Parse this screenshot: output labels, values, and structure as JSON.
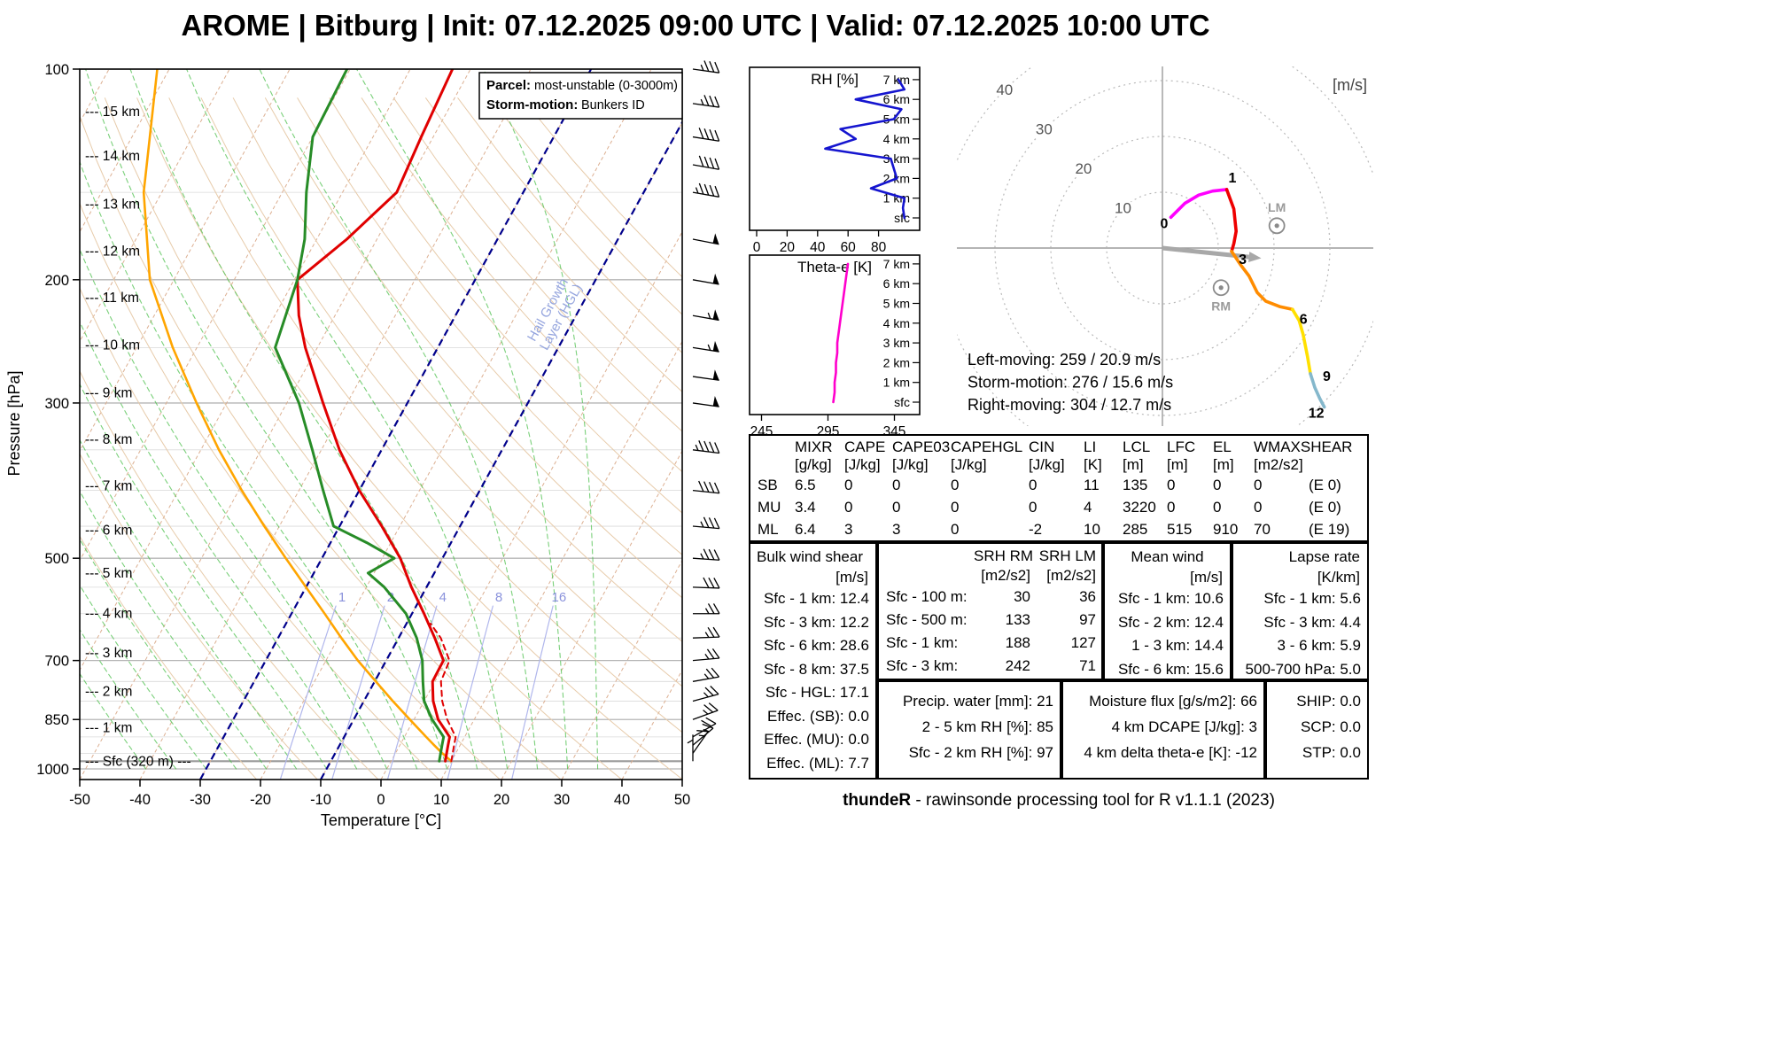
{
  "title": "AROME | Bitburg | Init: 07.12.2025 09:00 UTC | Valid: 07.12.2025 10:00 UTC",
  "footer": {
    "bold": "thundeR",
    "text": " - rawinsonde processing tool for R v1.1.1 (2023)"
  },
  "skewt": {
    "xlabel": "Temperature [°C]",
    "ylabel": "Pressure [hPa]",
    "x_ticks": [
      -50,
      -40,
      -30,
      -20,
      -10,
      0,
      10,
      20,
      30,
      40,
      50
    ],
    "p_ticks": [
      100,
      200,
      300,
      500,
      700,
      850,
      1000
    ],
    "p_gridlines": [
      100,
      150,
      200,
      250,
      300,
      350,
      400,
      450,
      500,
      550,
      600,
      650,
      700,
      750,
      800,
      850,
      900,
      950,
      1000
    ],
    "km_labels": [
      [
        "15 km",
        115
      ],
      [
        "14 km",
        133
      ],
      [
        "13 km",
        156
      ],
      [
        "12 km",
        182
      ],
      [
        "11 km",
        212
      ],
      [
        "10 km",
        248
      ],
      [
        "9 km",
        290
      ],
      [
        "8 km",
        338
      ],
      [
        "7 km",
        394
      ],
      [
        "6 km",
        456
      ],
      [
        "5 km",
        525
      ],
      [
        "4 km",
        600
      ],
      [
        "3 km",
        683
      ],
      [
        "2 km",
        775
      ],
      [
        "1 km",
        873
      ]
    ],
    "sfc_label": "Sfc (320 m)",
    "sfc_p": 975,
    "legend": {
      "parcel_label": "Parcel:",
      "parcel_value": "most-unstable (0-3000m)",
      "storm_label": "Storm-motion:",
      "storm_value": "Bunkers ID"
    },
    "hgl_label_line1": "Hail Growth",
    "hgl_label_line2": "Layer (HGL)",
    "mixing_ratio_values": [
      1,
      2,
      4,
      8,
      16
    ],
    "colors": {
      "temperature": "#e00000",
      "dewpoint": "#278c27",
      "parcel": "#ffa500",
      "hgl": "#00008b",
      "mixing": "#b0b6ec",
      "isotherm": "#dcaf91",
      "dry_adiabat": "#e7cbaa",
      "moist_adiabat": "#4ec04e"
    }
  },
  "chart_data": [
    {
      "type": "line",
      "name": "skewt_temperature",
      "x": "temperature_C",
      "y": "pressure_hPa",
      "points": [
        [
          975,
          9
        ],
        [
          950,
          8.5
        ],
        [
          925,
          8
        ],
        [
          900,
          7.5
        ],
        [
          850,
          4
        ],
        [
          800,
          1.5
        ],
        [
          750,
          -0.4
        ],
        [
          700,
          -0.5
        ],
        [
          650,
          -4
        ],
        [
          600,
          -8
        ],
        [
          550,
          -12.5
        ],
        [
          500,
          -17
        ],
        [
          450,
          -23
        ],
        [
          400,
          -30
        ],
        [
          350,
          -37
        ],
        [
          300,
          -44
        ],
        [
          250,
          -52
        ],
        [
          225,
          -56
        ],
        [
          200,
          -59.5
        ],
        [
          175,
          -55
        ],
        [
          150,
          -51
        ],
        [
          125,
          -52
        ],
        [
          100,
          -53
        ]
      ]
    },
    {
      "type": "line",
      "name": "skewt_dewpoint",
      "x": "dewpoint_C",
      "y": "pressure_hPa",
      "points": [
        [
          975,
          8
        ],
        [
          950,
          7.5
        ],
        [
          925,
          7
        ],
        [
          900,
          6.5
        ],
        [
          850,
          3
        ],
        [
          800,
          0
        ],
        [
          750,
          -2
        ],
        [
          700,
          -4
        ],
        [
          650,
          -7
        ],
        [
          600,
          -11
        ],
        [
          550,
          -17
        ],
        [
          525,
          -21
        ],
        [
          500,
          -18
        ],
        [
          475,
          -24
        ],
        [
          450,
          -31
        ],
        [
          400,
          -36
        ],
        [
          350,
          -41.5
        ],
        [
          300,
          -48
        ],
        [
          250,
          -57
        ],
        [
          200,
          -59.5
        ],
        [
          175,
          -62
        ],
        [
          150,
          -66
        ],
        [
          125,
          -70
        ],
        [
          100,
          -70.5
        ]
      ]
    },
    {
      "type": "line",
      "name": "skewt_parcel_most_unstable",
      "x": "temperature_C",
      "y": "pressure_hPa",
      "points": [
        [
          975,
          10
        ],
        [
          950,
          7.8
        ],
        [
          925,
          5.7
        ],
        [
          900,
          3.6
        ],
        [
          850,
          -0.7
        ],
        [
          800,
          -5.2
        ],
        [
          750,
          -9.8
        ],
        [
          700,
          -14.7
        ],
        [
          650,
          -19.5
        ],
        [
          600,
          -24.5
        ],
        [
          550,
          -30
        ],
        [
          500,
          -36
        ],
        [
          450,
          -42.5
        ],
        [
          400,
          -49.5
        ],
        [
          350,
          -57
        ],
        [
          300,
          -65
        ],
        [
          250,
          -74
        ],
        [
          200,
          -84
        ],
        [
          150,
          -93
        ],
        [
          100,
          -102
        ]
      ]
    },
    {
      "type": "line",
      "name": "skewt_virtual_temperature_dashed",
      "x": "temperature_C",
      "y": "pressure_hPa",
      "points": [
        [
          975,
          10
        ],
        [
          950,
          9.5
        ],
        [
          925,
          9
        ],
        [
          900,
          8.5
        ],
        [
          850,
          5.5
        ],
        [
          800,
          3
        ],
        [
          750,
          1
        ],
        [
          700,
          0.5
        ],
        [
          650,
          -3
        ],
        [
          620,
          -6
        ]
      ]
    },
    {
      "type": "barbs",
      "name": "wind_profile",
      "units": "m/s",
      "levels": [
        [
          975,
          4,
          180
        ],
        [
          950,
          7,
          215
        ],
        [
          925,
          9,
          230
        ],
        [
          900,
          10,
          240
        ],
        [
          850,
          12,
          250
        ],
        [
          800,
          12,
          255
        ],
        [
          750,
          13,
          260
        ],
        [
          700,
          12,
          265
        ],
        [
          650,
          13,
          268
        ],
        [
          600,
          14,
          270
        ],
        [
          550,
          16,
          272
        ],
        [
          500,
          17,
          274
        ],
        [
          450,
          19,
          275
        ],
        [
          400,
          21,
          276
        ],
        [
          350,
          23,
          277
        ],
        [
          300,
          25,
          278
        ],
        [
          275,
          26,
          278
        ],
        [
          250,
          27,
          279
        ],
        [
          225,
          27,
          280
        ],
        [
          200,
          26,
          280
        ],
        [
          175,
          25,
          281
        ],
        [
          150,
          22,
          280
        ],
        [
          137,
          21,
          280
        ],
        [
          125,
          20,
          279
        ],
        [
          112,
          19,
          278
        ],
        [
          100,
          18,
          278
        ]
      ]
    },
    {
      "type": "line",
      "name": "rh_profile",
      "x": "RH_percent",
      "y": "height_km",
      "points": [
        [
          0,
          97
        ],
        [
          0.5,
          96
        ],
        [
          1,
          97
        ],
        [
          1.5,
          75
        ],
        [
          2,
          92
        ],
        [
          2.5,
          90
        ],
        [
          3,
          88
        ],
        [
          3.5,
          45
        ],
        [
          4,
          65
        ],
        [
          4.5,
          55
        ],
        [
          5,
          90
        ],
        [
          5.5,
          95
        ],
        [
          6,
          65
        ],
        [
          6.5,
          97
        ],
        [
          7,
          93
        ]
      ]
    },
    {
      "type": "line",
      "name": "theta_e_profile",
      "x": "theta_e_K",
      "y": "height_km",
      "points": [
        [
          0,
          299
        ],
        [
          0.5,
          300
        ],
        [
          1,
          300
        ],
        [
          1.5,
          301
        ],
        [
          2,
          301
        ],
        [
          2.5,
          302
        ],
        [
          3,
          302
        ],
        [
          3.5,
          303
        ],
        [
          4,
          304
        ],
        [
          4.5,
          305
        ],
        [
          5,
          306
        ],
        [
          5.5,
          307
        ],
        [
          6,
          308
        ],
        [
          6.5,
          309
        ],
        [
          7,
          310
        ]
      ]
    },
    {
      "type": "line",
      "name": "hodograph",
      "x": "u_ms",
      "y": "v_ms",
      "note": "points are [height_km,u,v]",
      "points": [
        [
          0,
          1.5,
          5.5
        ],
        [
          0.25,
          4,
          8
        ],
        [
          0.5,
          6.5,
          9.5
        ],
        [
          0.75,
          9,
          10.2
        ],
        [
          1,
          11.5,
          10.5
        ],
        [
          1.5,
          12.8,
          7
        ],
        [
          2,
          13.2,
          3
        ],
        [
          2.5,
          12.8,
          0.8
        ],
        [
          3,
          12.4,
          -0.6
        ],
        [
          3.5,
          14,
          -3
        ],
        [
          4,
          15.5,
          -5
        ],
        [
          4.5,
          17,
          -8
        ],
        [
          5,
          18.5,
          -9.5
        ],
        [
          5.5,
          21,
          -10.5
        ],
        [
          6,
          23.3,
          -11
        ],
        [
          6.5,
          24.5,
          -13
        ],
        [
          7,
          25.2,
          -15.5
        ],
        [
          8,
          26,
          -19.5
        ],
        [
          9,
          26.5,
          -22.5
        ],
        [
          10,
          27.3,
          -25
        ],
        [
          11,
          28.2,
          -27
        ],
        [
          12,
          29,
          -28.5
        ]
      ]
    }
  ],
  "rh_panel": {
    "title": "RH [%]",
    "x_ticks": [
      0,
      20,
      40,
      60,
      80
    ],
    "height_labels": [
      "7 km",
      "6 km",
      "5 km",
      "4 km",
      "3 km",
      "2 km",
      "1 km",
      "sfc"
    ],
    "line_color": "#1515cf"
  },
  "theta_panel": {
    "title": "Theta-e [K]",
    "x_ticks": [
      245,
      295,
      345
    ],
    "height_labels": [
      "7 km",
      "6 km",
      "5 km",
      "4 km",
      "3 km",
      "2 km",
      "1 km",
      "sfc"
    ],
    "line_color": "#ff00cc"
  },
  "hodograph": {
    "unit_label": "[m/s]",
    "ring_radii": [
      10,
      20,
      30,
      40
    ],
    "height_marks": [
      0,
      1,
      3,
      6,
      9,
      12
    ],
    "segments": [
      {
        "from": 0,
        "to": 1,
        "color": "#ff00ff"
      },
      {
        "from": 1,
        "to": 3,
        "color": "#ee0000"
      },
      {
        "from": 3,
        "to": 6,
        "color": "#ff8c00"
      },
      {
        "from": 6,
        "to": 9,
        "color": "#ffe000"
      },
      {
        "from": 9,
        "to": 12,
        "color": "#85b8cc"
      }
    ],
    "storm_motion_uv": [
      15.5,
      -1.6
    ],
    "lm": {
      "label": "LM",
      "u": 20.5,
      "v": 4.0
    },
    "rm": {
      "label": "RM",
      "u": 10.5,
      "v": -7.1
    },
    "info_lines": [
      "Left-moving: 259 / 20.9 m/s",
      "Storm-motion: 276 / 15.6 m/s",
      "Right-moving: 304 / 12.7 m/s"
    ]
  },
  "indices_table": {
    "columns": [
      "MIXR",
      "CAPE",
      "CAPE03",
      "CAPEHGL",
      "CIN",
      "LI",
      "LCL",
      "LFC",
      "EL",
      "WMAXSHEAR"
    ],
    "units": [
      "[g/kg]",
      "[J/kg]",
      "[J/kg]",
      "[J/kg]",
      "[J/kg]",
      "[K]",
      "[m]",
      "[m]",
      "[m]",
      "[m2/s2]"
    ],
    "rows": [
      {
        "label": "SB",
        "values": [
          "6.5",
          "0",
          "0",
          "0",
          "0",
          "11",
          "135",
          "0",
          "0",
          "0"
        ],
        "extra": "(E 0)"
      },
      {
        "label": "MU",
        "values": [
          "3.4",
          "0",
          "0",
          "0",
          "0",
          "4",
          "3220",
          "0",
          "0",
          "0"
        ],
        "extra": "(E 0)"
      },
      {
        "label": "ML",
        "values": [
          "6.4",
          "3",
          "3",
          "0",
          "-2",
          "10",
          "285",
          "515",
          "910",
          "70"
        ],
        "extra": "(E 19)"
      }
    ]
  },
  "shear_box": {
    "title": "Bulk wind shear",
    "unit": "[m/s]",
    "rows": [
      "Sfc - 1 km: 12.4",
      "Sfc - 3 km: 12.2",
      "Sfc - 6 km: 28.6",
      "Sfc - 8 km: 37.5",
      "Sfc - HGL: 17.1",
      "Effec. (SB): 0.0",
      "Effec. (MU): 0.0",
      "Effec. (ML): 7.7"
    ]
  },
  "srh_box": {
    "col1_title": "SRH RM",
    "col1_unit": "[m2/s2]",
    "col2_title": "SRH LM",
    "col2_unit": "[m2/s2]",
    "rows": [
      [
        "Sfc - 100 m:",
        "30",
        "36"
      ],
      [
        "Sfc - 500 m:",
        "133",
        "97"
      ],
      [
        "Sfc - 1 km:",
        "188",
        "127"
      ],
      [
        "Sfc - 3 km:",
        "242",
        "71"
      ]
    ]
  },
  "meanwind_box": {
    "title": "Mean wind",
    "unit": "[m/s]",
    "rows": [
      "Sfc - 1 km: 10.6",
      "Sfc - 2 km: 12.4",
      "1 - 3 km: 14.4",
      "Sfc - 6 km: 15.6"
    ]
  },
  "lapse_box": {
    "title": "Lapse rate",
    "unit": "[K/km]",
    "rows": [
      "Sfc - 1 km: 5.6",
      "Sfc - 3 km: 4.4",
      "3 - 6 km: 5.9",
      "500-700 hPa: 5.0"
    ]
  },
  "precip_box": {
    "rows": [
      "Precip. water [mm]: 21",
      "2 - 5 km RH [%]: 85",
      "Sfc - 2 km RH [%]: 97"
    ]
  },
  "moisture_box": {
    "rows": [
      "Moisture flux [g/s/m2]: 66",
      "4 km DCAPE [J/kg]: 3",
      "4 km delta theta-e [K]: -12"
    ]
  },
  "composite_box": {
    "rows": [
      "SHIP: 0.0",
      "SCP: 0.0",
      "STP: 0.0"
    ]
  }
}
